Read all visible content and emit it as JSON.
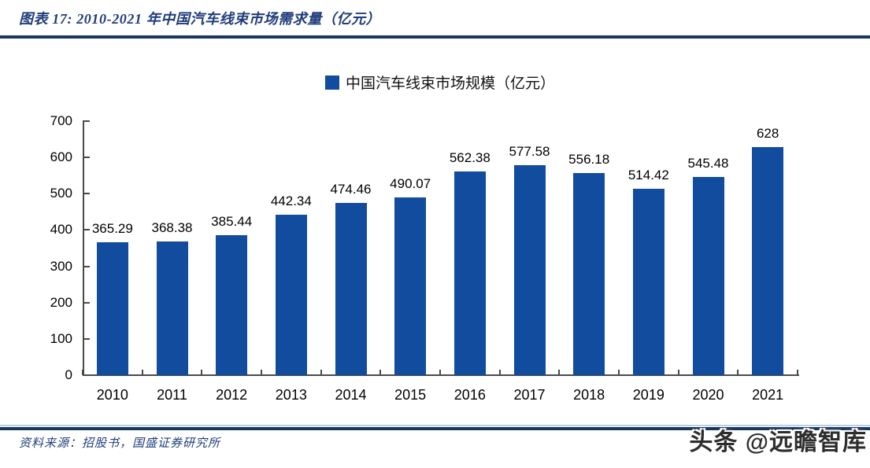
{
  "page": {
    "title_label": "图表 17:  2010-2021 年中国汽车线束市场需求量（亿元）",
    "source_label": "资料来源：招股书，国盛证券研究所",
    "watermark": "头条 @远瞻智库"
  },
  "legend": {
    "label": "中国汽车线束市场规模（亿元）"
  },
  "chart_data": {
    "type": "bar",
    "title": "2010-2021 年中国汽车线束市场需求量（亿元）",
    "legend_entries": [
      "中国汽车线束市场规模（亿元）"
    ],
    "legend_position": "top",
    "categories": [
      "2010",
      "2011",
      "2012",
      "2013",
      "2014",
      "2015",
      "2016",
      "2017",
      "2018",
      "2019",
      "2020",
      "2021"
    ],
    "values": [
      365.29,
      368.38,
      385.44,
      442.34,
      474.46,
      490.07,
      562.38,
      577.58,
      556.18,
      514.42,
      545.48,
      628
    ],
    "value_labels": [
      "365.29",
      "368.38",
      "385.44",
      "442.34",
      "474.46",
      "490.07",
      "562.38",
      "577.58",
      "556.18",
      "514.42",
      "545.48",
      "628"
    ],
    "xlabel": "",
    "ylabel": "",
    "ylim": [
      0,
      700
    ],
    "y_ticks": [
      0,
      100,
      200,
      300,
      400,
      500,
      600,
      700
    ],
    "grid": false,
    "bar_color": "#114C9E"
  },
  "colors": {
    "bar_blue": "#114C9E",
    "rule_navy": "#17375E",
    "title_blue": "#1F3D7A",
    "axis_gray": "#4A4A4A",
    "light_rule": "#B9CDE5"
  }
}
